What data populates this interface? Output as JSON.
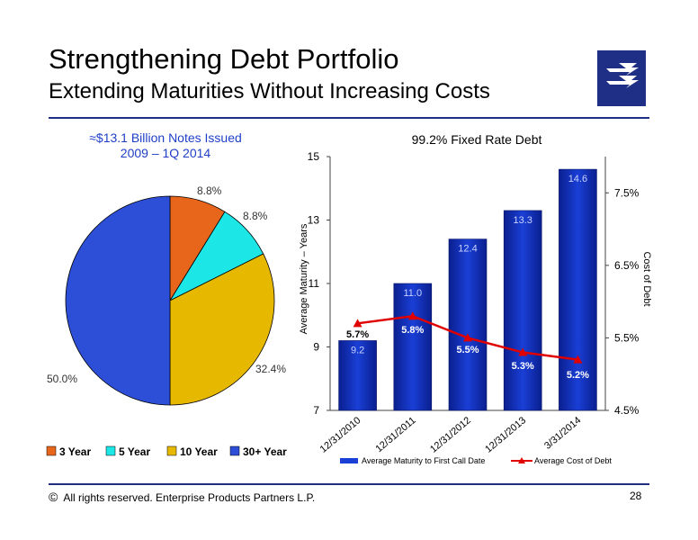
{
  "header": {
    "title": "Strengthening Debt Portfolio",
    "subtitle": "Extending Maturities Without Increasing Costs"
  },
  "footer": {
    "copyright_symbol": "©",
    "text": "All rights reserved. Enterprise Products Partners L.P.",
    "page_number": "28"
  },
  "chart_data": [
    {
      "type": "pie",
      "title_line1": "≈$13.1 Billion Notes Issued",
      "title_line2": "2009 – 1Q 2014",
      "slices": [
        {
          "label": "3 Year",
          "value": 8.8,
          "display": "8.8%",
          "color": "#e8651c"
        },
        {
          "label": "5 Year",
          "value": 8.8,
          "display": "8.8%",
          "color": "#1de6e6"
        },
        {
          "label": "10 Year",
          "value": 32.4,
          "display": "32.4%",
          "color": "#e6b800"
        },
        {
          "label": "30+ Year",
          "value": 50.0,
          "display": "50.0%",
          "color": "#2d4fd8"
        }
      ],
      "legend_position": "bottom"
    },
    {
      "type": "bar+line",
      "title": "99.2% Fixed Rate Debt",
      "categories": [
        "12/31/2010",
        "12/31/2011",
        "12/31/2012",
        "12/31/2013",
        "3/31/2014"
      ],
      "bar_series": {
        "name": "Average Maturity to First Call Date",
        "values": [
          9.2,
          11.0,
          12.4,
          13.3,
          14.6
        ],
        "labels": [
          "9.2",
          "11.0",
          "12.4",
          "13.3",
          "14.6"
        ],
        "color": "#1a3fd6"
      },
      "line_series": {
        "name": "Average Cost of Debt",
        "values": [
          5.7,
          5.8,
          5.5,
          5.3,
          5.2
        ],
        "labels": [
          "5.7%",
          "5.8%",
          "5.5%",
          "5.3%",
          "5.2%"
        ],
        "color": "#e00000"
      },
      "ylabel_left": "Average Maturity – Years",
      "ylabel_right": "Cost of Debt",
      "ylim_left": [
        7,
        15
      ],
      "yticks_left": [
        "7",
        "9",
        "11",
        "13",
        "15"
      ],
      "ylim_right": [
        4.5,
        8.0
      ],
      "yticks_right": [
        "4.5%",
        "5.5%",
        "6.5%",
        "7.5%"
      ],
      "legend_position": "bottom"
    }
  ]
}
